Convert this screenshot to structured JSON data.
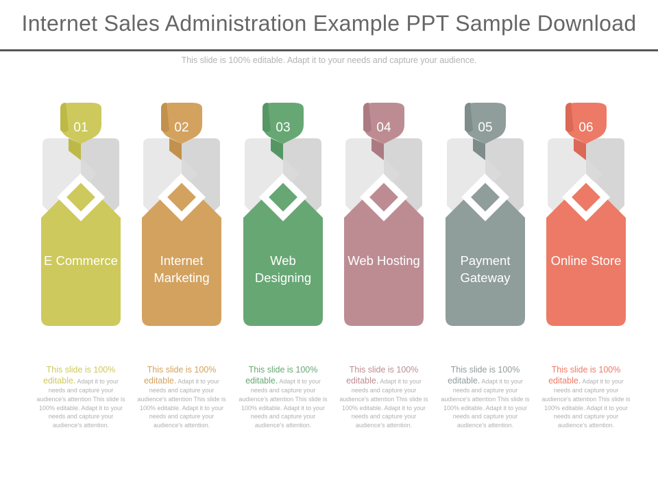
{
  "slide": {
    "title": "Internet Sales Administration Example PPT Sample Download",
    "subtitle": "This slide is 100% editable. Adapt it to your needs and capture your audience."
  },
  "items": [
    {
      "number": "01",
      "label": "E Commerce",
      "color": "#cdc95c",
      "tab": "#bdb946",
      "desc_lead": "This slide is 100% editable.",
      "desc_body": "Adapt it to your needs and capture your audience's attention This slide is 100% editable. Adapt it to your needs and capture your audience's attention."
    },
    {
      "number": "02",
      "label": "Internet Marketing",
      "color": "#d3a25f",
      "tab": "#c2914e",
      "desc_lead": "This slide is 100% editable.",
      "desc_body": "Adapt it to your needs and capture your audience's attention This slide is 100% editable. Adapt it to your needs and capture your audience's attention."
    },
    {
      "number": "03",
      "label": "Web Designing",
      "color": "#67a774",
      "tab": "#569664",
      "desc_lead": "This slide is 100% editable.",
      "desc_body": "Adapt it to your needs and capture your audience's attention This slide is 100% editable. Adapt it to your needs and capture your audience's attention."
    },
    {
      "number": "04",
      "label": "Web Hosting",
      "color": "#bd8c93",
      "tab": "#ac7b82",
      "desc_lead": "This slide is 100% editable.",
      "desc_body": "Adapt it to your needs and capture your audience's attention This slide is 100% editable. Adapt it to your needs and capture your audience's attention."
    },
    {
      "number": "05",
      "label": "Payment Gateway",
      "color": "#8f9d9b",
      "tab": "#7e8c8a",
      "desc_lead": "This slide is 100% editable.",
      "desc_body": "Adapt it to your needs and capture your audience's attention This slide is 100% editable. Adapt it to your needs and capture your audience's attention."
    },
    {
      "number": "06",
      "label": "Online Store",
      "color": "#ec7a66",
      "tab": "#db6955",
      "desc_lead": "This slide is 100% editable.",
      "desc_body": "Adapt it to your needs and capture your audience's attention This slide is 100% editable. Adapt it to your needs and capture your audience's attention."
    }
  ]
}
